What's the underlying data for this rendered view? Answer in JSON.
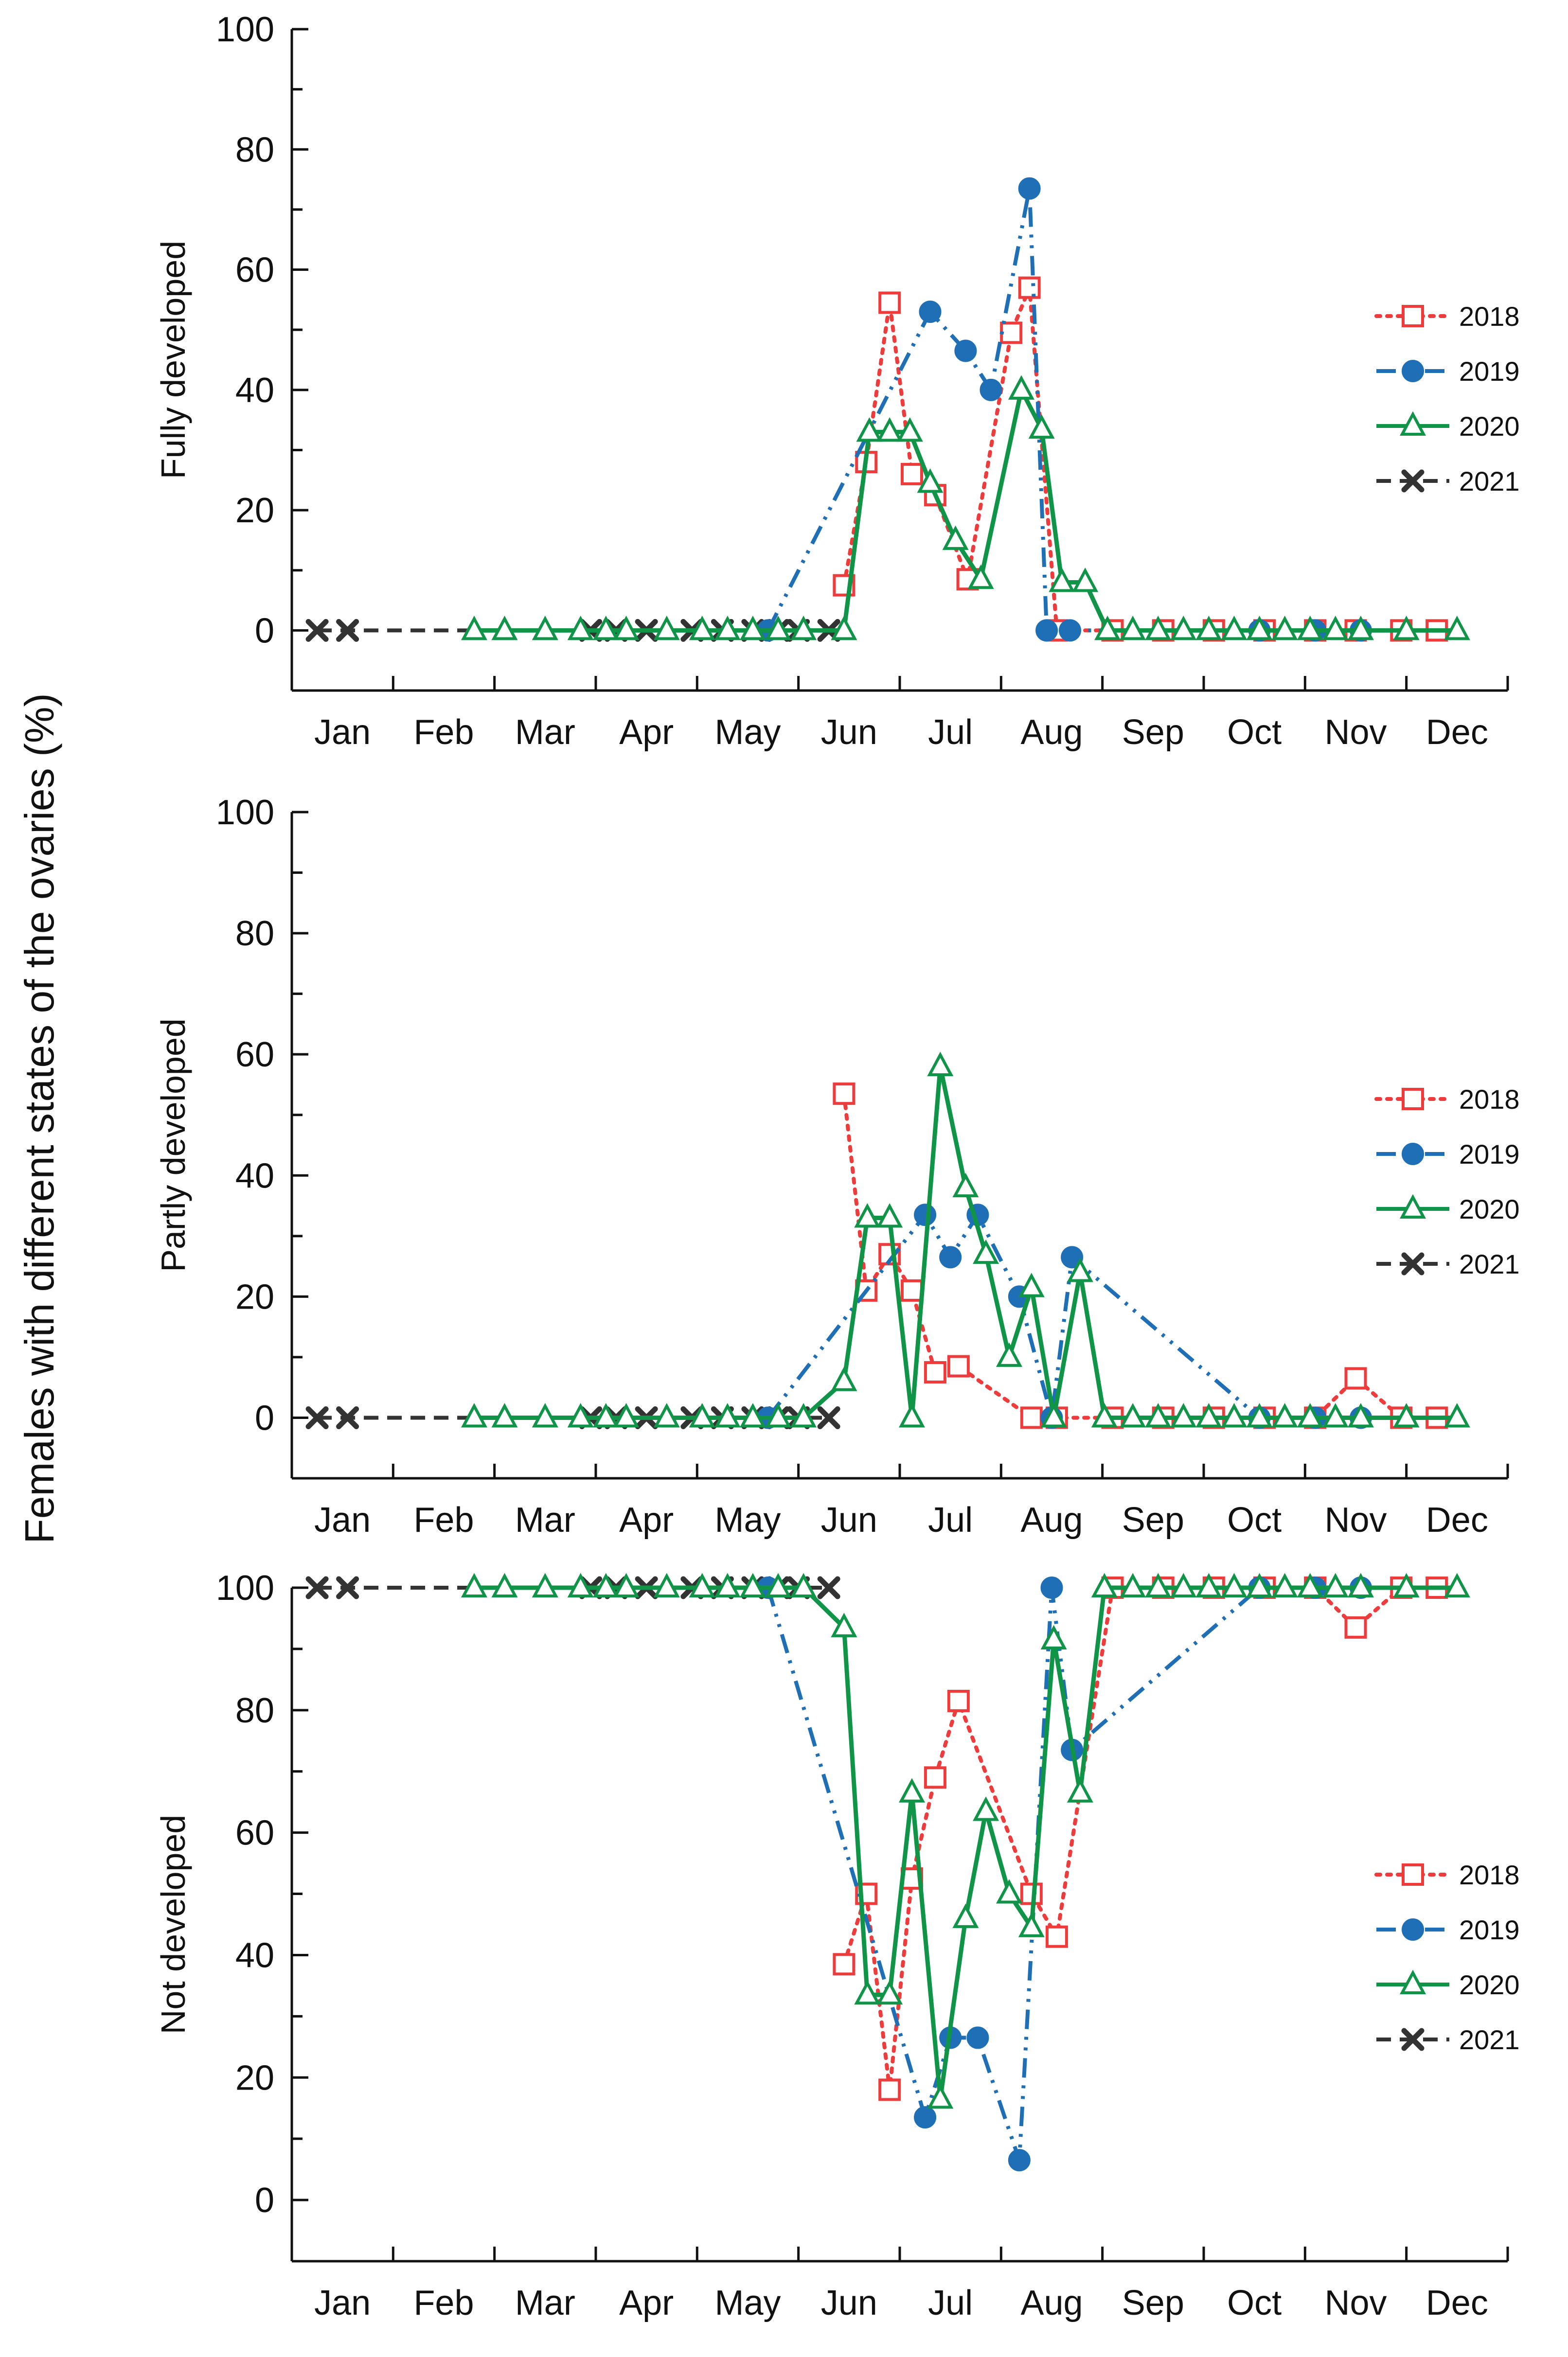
{
  "figure": {
    "y_axis_super_label": "Females with different states of the ovaries (%)"
  },
  "series_styles": {
    "2018": {
      "color": "#ee3b3b",
      "marker": "square-open",
      "line": "dotted"
    },
    "2019": {
      "color": "#1f6fb7",
      "marker": "circle-filled",
      "line": "dash-dot-dot"
    },
    "2020": {
      "color": "#0f9448",
      "marker": "triangle-open",
      "line": "solid"
    },
    "2021": {
      "color": "#333333",
      "marker": "x",
      "line": "dashed"
    }
  },
  "chart_data": [
    {
      "type": "line",
      "ylabel": "Fully developed",
      "xlabel": "",
      "xlim": [
        0,
        12
      ],
      "ylim": [
        -10,
        100
      ],
      "yticks": [
        0,
        20,
        40,
        60,
        80,
        100
      ],
      "tick_labels": [
        "Jan",
        "Feb",
        "Mar",
        "Apr",
        "May",
        "Jun",
        "Jul",
        "Aug",
        "Sep",
        "Oct",
        "Nov",
        "Dec"
      ],
      "legend": {
        "position": "right",
        "entries": [
          "2018",
          "2019",
          "2020",
          "2021"
        ]
      },
      "series": [
        {
          "name": "2018",
          "x": [
            5.45,
            5.67,
            5.9,
            6.12,
            6.35,
            6.67,
            7.1,
            7.28,
            7.55,
            8.1,
            8.6,
            9.1,
            9.6,
            10.1,
            10.5,
            10.95,
            11.3
          ],
          "y": [
            7.5,
            28,
            54.5,
            26,
            22.5,
            8.5,
            49.5,
            57,
            0,
            0,
            0,
            0,
            0,
            0,
            0,
            0,
            0
          ]
        },
        {
          "name": "2019",
          "x": [
            4.7,
            6.3,
            6.65,
            6.9,
            7.28,
            7.45,
            7.68,
            9.55,
            10.1,
            10.55
          ],
          "y": [
            0,
            53,
            46.5,
            40,
            73.5,
            0,
            0,
            0,
            0,
            0
          ]
        },
        {
          "name": "2020",
          "x": [
            1.8,
            2.1,
            2.5,
            2.85,
            3.1,
            3.3,
            3.7,
            4.05,
            4.3,
            4.55,
            4.8,
            5.05,
            5.45,
            5.7,
            5.9,
            6.1,
            6.3,
            6.55,
            6.8,
            7.2,
            7.4,
            7.6,
            7.83,
            8.05,
            8.3,
            8.55,
            8.8,
            9.05,
            9.3,
            9.55,
            9.8,
            10.05,
            10.3,
            10.55,
            11.0,
            11.5
          ],
          "y": [
            0,
            0,
            0,
            0,
            0,
            0,
            0,
            0,
            0,
            0,
            0,
            0,
            0,
            33,
            33,
            33,
            24.5,
            15,
            8.5,
            40,
            33.5,
            8,
            8,
            0,
            0,
            0,
            0,
            0,
            0,
            0,
            0,
            0,
            0,
            0,
            0,
            0
          ]
        },
        {
          "name": "2021",
          "x": [
            0.25,
            0.55,
            2.95,
            3.2,
            3.5,
            3.95,
            4.25,
            4.55,
            4.8,
            5.0,
            5.3
          ],
          "y": [
            0,
            0,
            0,
            0,
            0,
            0,
            0,
            0,
            0,
            0,
            0
          ]
        }
      ]
    },
    {
      "type": "line",
      "ylabel": "Partly developed",
      "xlabel": "",
      "xlim": [
        0,
        12
      ],
      "ylim": [
        -10,
        100
      ],
      "yticks": [
        0,
        20,
        40,
        60,
        80,
        100
      ],
      "tick_labels": [
        "Jan",
        "Feb",
        "Mar",
        "Apr",
        "May",
        "Jun",
        "Jul",
        "Aug",
        "Sep",
        "Oct",
        "Nov",
        "Dec"
      ],
      "legend": {
        "position": "right",
        "entries": [
          "2018",
          "2019",
          "2020",
          "2021"
        ]
      },
      "series": [
        {
          "name": "2018",
          "x": [
            5.45,
            5.67,
            5.9,
            6.12,
            6.35,
            6.58,
            7.3,
            7.55,
            8.1,
            8.6,
            9.1,
            9.6,
            10.1,
            10.5,
            10.95,
            11.3
          ],
          "y": [
            53.5,
            21,
            27,
            21,
            7.5,
            8.5,
            0,
            0,
            0,
            0,
            0,
            0,
            0,
            6.5,
            0,
            0
          ]
        },
        {
          "name": "2019",
          "x": [
            4.7,
            6.25,
            6.5,
            6.77,
            7.18,
            7.5,
            7.7,
            9.55,
            10.1,
            10.55
          ],
          "y": [
            0,
            33.5,
            26.5,
            33.5,
            20,
            0,
            26.5,
            0,
            0,
            0
          ]
        },
        {
          "name": "2020",
          "x": [
            1.8,
            2.1,
            2.5,
            2.85,
            3.1,
            3.3,
            3.7,
            4.05,
            4.3,
            4.55,
            4.8,
            5.05,
            5.45,
            5.68,
            5.9,
            6.12,
            6.4,
            6.65,
            6.85,
            7.08,
            7.3,
            7.52,
            7.78,
            8.02,
            8.3,
            8.55,
            8.8,
            9.05,
            9.3,
            9.55,
            9.8,
            10.05,
            10.3,
            10.55,
            11.0,
            11.5
          ],
          "y": [
            0,
            0,
            0,
            0,
            0,
            0,
            0,
            0,
            0,
            0,
            0,
            0,
            6,
            33,
            33,
            0,
            58,
            38,
            27,
            10,
            21.5,
            0,
            24,
            0,
            0,
            0,
            0,
            0,
            0,
            0,
            0,
            0,
            0,
            0,
            0,
            0
          ]
        },
        {
          "name": "2021",
          "x": [
            0.25,
            0.55,
            2.95,
            3.2,
            3.5,
            3.95,
            4.25,
            4.55,
            4.8,
            5.0,
            5.3
          ],
          "y": [
            0,
            0,
            0,
            0,
            0,
            0,
            0,
            0,
            0,
            0,
            0
          ]
        }
      ]
    },
    {
      "type": "line",
      "ylabel": "Not developed",
      "xlabel": "",
      "xlim": [
        0,
        12
      ],
      "ylim": [
        -10,
        100
      ],
      "yticks": [
        0,
        20,
        40,
        60,
        80,
        100
      ],
      "tick_labels": [
        "Jan",
        "Feb",
        "Mar",
        "Apr",
        "May",
        "Jun",
        "Jul",
        "Aug",
        "Sep",
        "Oct",
        "Nov",
        "Dec"
      ],
      "legend": {
        "position": "right",
        "entries": [
          "2018",
          "2019",
          "2020",
          "2021"
        ]
      },
      "series": [
        {
          "name": "2018",
          "x": [
            5.45,
            5.67,
            5.9,
            6.12,
            6.35,
            6.58,
            7.3,
            7.55,
            8.1,
            8.6,
            9.1,
            9.6,
            10.1,
            10.5,
            10.95,
            11.3
          ],
          "y": [
            38.5,
            50,
            18,
            52.5,
            69,
            81.5,
            50,
            43,
            100,
            100,
            100,
            100,
            100,
            93.5,
            100,
            100
          ]
        },
        {
          "name": "2019",
          "x": [
            4.7,
            6.25,
            6.5,
            6.77,
            7.18,
            7.5,
            7.7,
            9.55,
            10.1,
            10.55
          ],
          "y": [
            100,
            13.5,
            26.5,
            26.5,
            6.5,
            100,
            73.5,
            100,
            100,
            100
          ]
        },
        {
          "name": "2020",
          "x": [
            1.8,
            2.1,
            2.5,
            2.85,
            3.1,
            3.3,
            3.7,
            4.05,
            4.3,
            4.55,
            4.8,
            5.05,
            5.45,
            5.68,
            5.9,
            6.12,
            6.4,
            6.65,
            6.85,
            7.08,
            7.3,
            7.52,
            7.78,
            8.02,
            8.3,
            8.55,
            8.8,
            9.05,
            9.3,
            9.55,
            9.8,
            10.05,
            10.3,
            10.55,
            11.0,
            11.5
          ],
          "y": [
            100,
            100,
            100,
            100,
            100,
            100,
            100,
            100,
            100,
            100,
            100,
            100,
            93.5,
            33.5,
            33.5,
            66.5,
            16.5,
            46,
            63.5,
            50,
            44.5,
            91.5,
            66.5,
            100,
            100,
            100,
            100,
            100,
            100,
            100,
            100,
            100,
            100,
            100,
            100,
            100
          ]
        },
        {
          "name": "2021",
          "x": [
            0.25,
            0.55,
            2.95,
            3.2,
            3.5,
            3.95,
            4.25,
            4.55,
            4.8,
            5.0,
            5.3
          ],
          "y": [
            100,
            100,
            100,
            100,
            100,
            100,
            100,
            100,
            100,
            100,
            100
          ]
        }
      ]
    }
  ]
}
